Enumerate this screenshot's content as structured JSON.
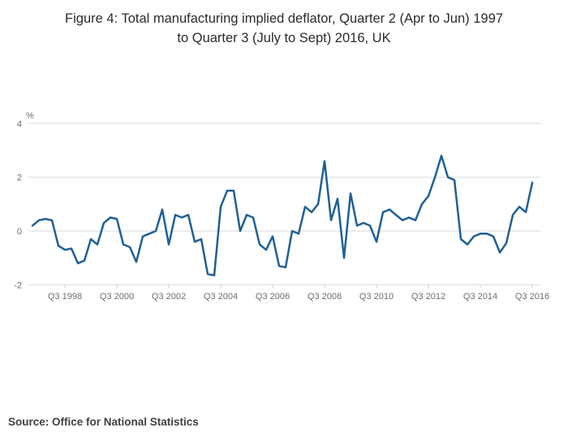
{
  "title": {
    "line1": "Figure 4: Total manufacturing implied deflator, Quarter 2 (Apr to Jun) 1997",
    "line2": "to Quarter 3 (July to Sept) 2016, UK"
  },
  "source": "Source: Office for National Statistics",
  "chart_data": {
    "type": "line",
    "title": "Figure 4: Total manufacturing implied deflator, Quarter 2 (Apr to Jun) 1997 to Quarter 3 (July to Sept) 2016, UK",
    "xlabel": "",
    "ylabel": "%",
    "ylim": [
      -2,
      4
    ],
    "grid": "horizontal",
    "legend": "none",
    "frequency": "quarterly",
    "x_start": "1997 Q2",
    "x_end": "2016 Q3",
    "x_tick_labels": [
      "Q3 1998",
      "Q3 2000",
      "Q3 2002",
      "Q3 2004",
      "Q3 2006",
      "Q3 2008",
      "Q3 2010",
      "Q3 2012",
      "Q3 2014",
      "Q3 2016"
    ],
    "x_tick_start_index": 5,
    "x_tick_step": 8,
    "y_ticks": [
      4,
      2,
      0,
      -2
    ],
    "colors": {
      "line": "#206095",
      "grid": "#d8d8d8",
      "tick_text": "#6e6e6e",
      "axis_tick": "#cccccc"
    },
    "series": [
      {
        "name": "Total manufacturing implied deflator",
        "values": [
          0.2,
          0.4,
          0.45,
          0.4,
          -0.55,
          -0.7,
          -0.65,
          -1.2,
          -1.1,
          -0.3,
          -0.5,
          0.3,
          0.5,
          0.45,
          -0.5,
          -0.6,
          -1.15,
          -0.2,
          -0.1,
          0.0,
          0.8,
          -0.5,
          0.6,
          0.5,
          0.6,
          -0.4,
          -0.3,
          -1.6,
          -1.65,
          0.9,
          1.5,
          1.5,
          0.0,
          0.6,
          0.5,
          -0.5,
          -0.7,
          -0.2,
          -1.3,
          -1.35,
          0.0,
          -0.1,
          0.9,
          0.7,
          1.0,
          2.6,
          0.4,
          1.2,
          -1.0,
          1.4,
          0.2,
          0.3,
          0.2,
          -0.4,
          0.7,
          0.8,
          0.6,
          0.4,
          0.5,
          0.4,
          1.0,
          1.3,
          2.0,
          2.8,
          2.0,
          1.9,
          -0.3,
          -0.5,
          -0.2,
          -0.1,
          -0.1,
          -0.2,
          -0.8,
          -0.45,
          0.6,
          0.9,
          0.7,
          1.8
        ]
      }
    ]
  }
}
